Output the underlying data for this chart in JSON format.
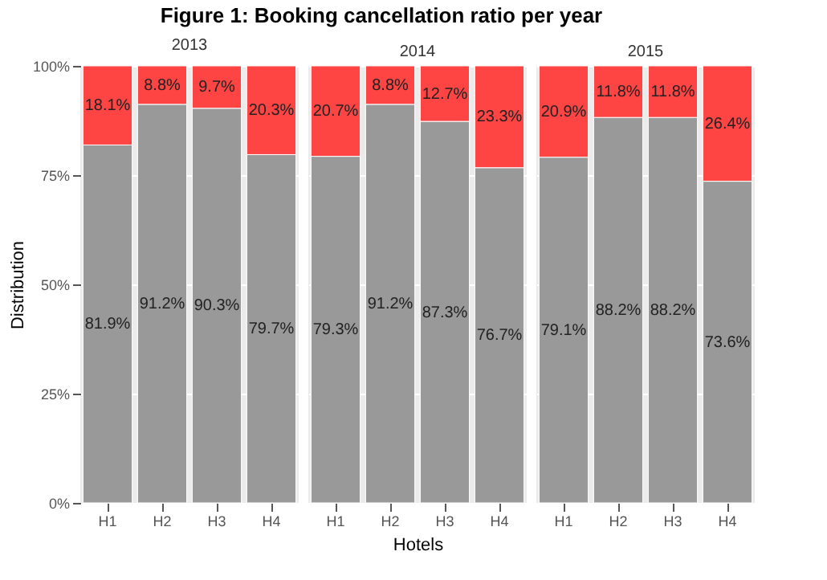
{
  "chart_data": [
    {
      "type": "bar",
      "title": "Figure 1: Booking cancellation ratio per year",
      "subtitle": "2013",
      "ylabel": "Distribution",
      "categories": [
        "H1",
        "H2",
        "H3",
        "H4"
      ],
      "stacked": true,
      "grid": true,
      "ylim": [
        0,
        100
      ],
      "yticks": [
        {
          "value": 0,
          "label": "0%"
        },
        {
          "value": 25,
          "label": "25%"
        },
        {
          "value": 50,
          "label": "50%"
        },
        {
          "value": 75,
          "label": "75%"
        },
        {
          "value": 100,
          "label": "100%"
        }
      ],
      "series": [
        {
          "color": "#999999",
          "values": [
            81.9,
            91.2,
            90.3,
            79.7
          ],
          "value_labels": [
            "81.9%",
            "91.2%",
            "90.3%",
            "79.7%"
          ]
        },
        {
          "color": "#ff4444",
          "values": [
            18.1,
            8.8,
            9.7,
            20.3
          ],
          "value_labels": [
            "18.1%",
            "8.8%",
            "9.7%",
            "20.3%"
          ]
        }
      ]
    },
    {
      "type": "bar",
      "subtitle": "2014",
      "xlabel": "Hotels",
      "categories": [
        "H1",
        "H2",
        "H3",
        "H4"
      ],
      "stacked": true,
      "grid": true,
      "tick_labels": "x",
      "ylim": [
        0,
        100
      ],
      "yticks": [
        0,
        25,
        50,
        75,
        100
      ],
      "series": [
        {
          "color": "#999999",
          "values": [
            79.3,
            91.2,
            87.3,
            76.7
          ],
          "value_labels": [
            "79.3%",
            "91.2%",
            "87.3%",
            "76.7%"
          ]
        },
        {
          "color": "#ff4444",
          "values": [
            20.7,
            8.8,
            12.7,
            23.3
          ],
          "value_labels": [
            "20.7%",
            "8.8%",
            "12.7%",
            "23.3%"
          ]
        }
      ]
    },
    {
      "type": "bar",
      "subtitle": "2015",
      "categories": [
        "H1",
        "H2",
        "H3",
        "H4"
      ],
      "stacked": true,
      "grid": true,
      "tick_labels": "x",
      "ylim": [
        0,
        100
      ],
      "yticks": [
        0,
        25,
        50,
        75,
        100
      ],
      "series": [
        {
          "color": "#999999",
          "values": [
            79.1,
            88.2,
            88.2,
            73.6
          ],
          "value_labels": [
            "79.1%",
            "88.2%",
            "88.2%",
            "73.6%"
          ]
        },
        {
          "color": "#ff4444",
          "values": [
            20.9,
            11.8,
            11.8,
            26.4
          ],
          "value_labels": [
            "20.9%",
            "11.8%",
            "11.8%",
            "26.4%"
          ]
        }
      ]
    }
  ]
}
